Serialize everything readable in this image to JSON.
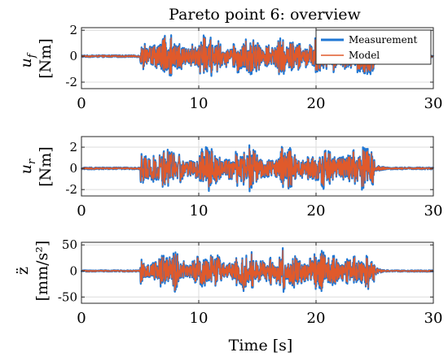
{
  "title": "Pareto point 6: overview",
  "xlabel": "Time [s]",
  "colors": {
    "measurement": "#1f77d4",
    "model": "#e05a2b"
  },
  "legend": {
    "placement": "top-right",
    "entries": [
      "Measurement",
      "Model"
    ]
  },
  "chart_data": [
    {
      "type": "line",
      "panel": "uf",
      "ylabel_symbol": "u",
      "ylabel_sub": "f",
      "ylabel_unit": "[Nm]",
      "xlim": [
        0,
        30
      ],
      "ylim": [
        -2.5,
        2.2
      ],
      "xticks": [
        0,
        10,
        20,
        30
      ],
      "yticks": [
        -2,
        0,
        2
      ],
      "grid": true,
      "excitation": {
        "start": 5,
        "end": 25,
        "quiet_amplitude": 0.08,
        "active_amplitude": 2.0
      },
      "series": [
        {
          "name": "Measurement"
        },
        {
          "name": "Model"
        }
      ]
    },
    {
      "type": "line",
      "panel": "ur",
      "ylabel_symbol": "u",
      "ylabel_sub": "r",
      "ylabel_unit": "[Nm]",
      "xlim": [
        0,
        30
      ],
      "ylim": [
        -2.6,
        3.0
      ],
      "xticks": [
        0,
        10,
        20,
        30
      ],
      "yticks": [
        -2,
        0,
        2
      ],
      "grid": true,
      "excitation": {
        "start": 5,
        "end": 25,
        "quiet_amplitude": 0.1,
        "active_amplitude": 2.4
      },
      "series": [
        {
          "name": "Measurement"
        },
        {
          "name": "Model"
        }
      ]
    },
    {
      "type": "line",
      "panel": "zdd",
      "ylabel_symbol": "z̈",
      "ylabel_unit": "[mm/s²]",
      "xlim": [
        0,
        30
      ],
      "ylim": [
        -62,
        55
      ],
      "xticks": [
        0,
        10,
        20,
        30
      ],
      "yticks": [
        -50,
        0,
        50
      ],
      "grid": true,
      "excitation": {
        "start": 5,
        "end": 25,
        "quiet_amplitude": 1.5,
        "active_amplitude": 48
      },
      "series": [
        {
          "name": "Measurement"
        },
        {
          "name": "Model"
        }
      ]
    }
  ]
}
